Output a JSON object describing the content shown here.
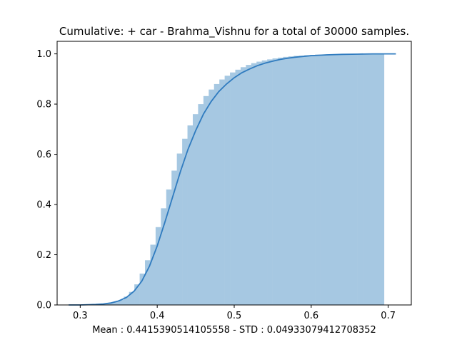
{
  "chart_data": {
    "type": "area",
    "title": "Cumulative: + car - Brahma_Vishnu  for a total of 30000 samples.",
    "xlabel": "Mean : 0.4415390514105558 - STD : 0.04933079412708352",
    "ylabel": "",
    "xlim": [
      0.27,
      0.73
    ],
    "ylim": [
      0.0,
      1.05
    ],
    "x_ticks": [
      0.3,
      0.4,
      0.5,
      0.6,
      0.7
    ],
    "x_tick_labels": [
      "0.3",
      "0.4",
      "0.5",
      "0.6",
      "0.7"
    ],
    "y_ticks": [
      0.0,
      0.2,
      0.4,
      0.6,
      0.8,
      1.0
    ],
    "y_tick_labels": [
      "0.0",
      "0.2",
      "0.4",
      "0.6",
      "0.8",
      "1.0"
    ],
    "grid": false,
    "colors": {
      "histogram": "#a6c8e2",
      "curve": "#2f7bbf"
    },
    "histogram": {
      "bin_edges": [
        0.2875,
        0.2944,
        0.3013,
        0.3082,
        0.3151,
        0.322,
        0.3289,
        0.3358,
        0.3427,
        0.3496,
        0.3565,
        0.3634,
        0.3703,
        0.3772,
        0.3841,
        0.391,
        0.3979,
        0.4048,
        0.4117,
        0.4186,
        0.4255,
        0.4324,
        0.4393,
        0.4462,
        0.4531,
        0.46,
        0.4669,
        0.4738,
        0.4807,
        0.4876,
        0.4945,
        0.5014,
        0.5083,
        0.5152,
        0.5221,
        0.529,
        0.5359,
        0.5428,
        0.5497,
        0.5566,
        0.5635,
        0.5704,
        0.5773,
        0.5842,
        0.5911,
        0.598,
        0.6049,
        0.6118,
        0.6187,
        0.6256,
        0.6325,
        0.6394,
        0.6463,
        0.6532,
        0.6601,
        0.667,
        0.6739,
        0.6808,
        0.6877,
        0.6946
      ],
      "cumulative": [
        0.0,
        0.0,
        0.0,
        0.0,
        0.001,
        0.002,
        0.004,
        0.007,
        0.012,
        0.02,
        0.033,
        0.052,
        0.082,
        0.125,
        0.178,
        0.24,
        0.31,
        0.385,
        0.46,
        0.535,
        0.603,
        0.662,
        0.715,
        0.76,
        0.8,
        0.832,
        0.858,
        0.88,
        0.898,
        0.913,
        0.926,
        0.937,
        0.947,
        0.956,
        0.963,
        0.969,
        0.974,
        0.978,
        0.982,
        0.985,
        0.988,
        0.99,
        0.992,
        0.993,
        0.995,
        0.996,
        0.997,
        0.997,
        0.998,
        0.998,
        0.999,
        0.999,
        0.999,
        0.999,
        1.0,
        1.0,
        1.0,
        1.0,
        1.0
      ]
    },
    "curve": {
      "x": [
        0.285,
        0.3,
        0.31,
        0.32,
        0.33,
        0.34,
        0.35,
        0.36,
        0.37,
        0.38,
        0.39,
        0.4,
        0.41,
        0.42,
        0.43,
        0.44,
        0.45,
        0.46,
        0.47,
        0.48,
        0.49,
        0.5,
        0.51,
        0.52,
        0.53,
        0.54,
        0.55,
        0.56,
        0.57,
        0.58,
        0.6,
        0.62,
        0.64,
        0.66,
        0.68,
        0.7,
        0.71
      ],
      "y": [
        0.0,
        0.0,
        0.001,
        0.002,
        0.004,
        0.008,
        0.016,
        0.03,
        0.055,
        0.095,
        0.155,
        0.235,
        0.33,
        0.43,
        0.53,
        0.62,
        0.695,
        0.76,
        0.81,
        0.85,
        0.88,
        0.905,
        0.925,
        0.94,
        0.953,
        0.963,
        0.971,
        0.978,
        0.983,
        0.987,
        0.993,
        0.996,
        0.998,
        0.999,
        1.0,
        1.0,
        1.0
      ]
    }
  }
}
